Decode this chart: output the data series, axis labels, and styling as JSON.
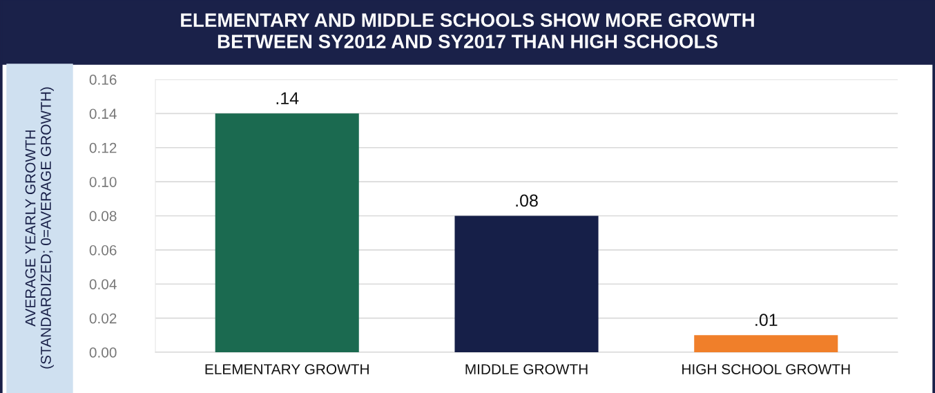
{
  "chart_data": {
    "type": "bar",
    "title": "ELEMENTARY AND MIDDLE SCHOOLS SHOW MORE GROWTH\nBETWEEN SY2012 AND SY2017 THAN HIGH SCHOOLS",
    "ylabel": "AVERAGE YEARLY GROWTH\n(STANDARDIZED; 0=AVERAGE GROWTH)",
    "categories": [
      "ELEMENTARY GROWTH",
      "MIDDLE GROWTH",
      "HIGH SCHOOL GROWTH"
    ],
    "values": [
      0.14,
      0.08,
      0.01
    ],
    "value_labels": [
      ".14",
      ".08",
      ".01"
    ],
    "colors": [
      "#1b6a50",
      "#161f48",
      "#f07f2a"
    ],
    "ylim": [
      0,
      0.16
    ],
    "yticks": [
      {
        "value": 0,
        "label": "0.00"
      },
      {
        "value": 0.02,
        "label": "0.02"
      },
      {
        "value": 0.04,
        "label": "0.04"
      },
      {
        "value": 0.06,
        "label": "0.06"
      },
      {
        "value": 0.08,
        "label": "0.08"
      },
      {
        "value": 0.1,
        "label": "0.10"
      },
      {
        "value": 0.12,
        "label": "0.12"
      },
      {
        "value": 0.14,
        "label": "0.14"
      },
      {
        "value": 0.16,
        "label": "0.16"
      }
    ],
    "grid": "y"
  }
}
